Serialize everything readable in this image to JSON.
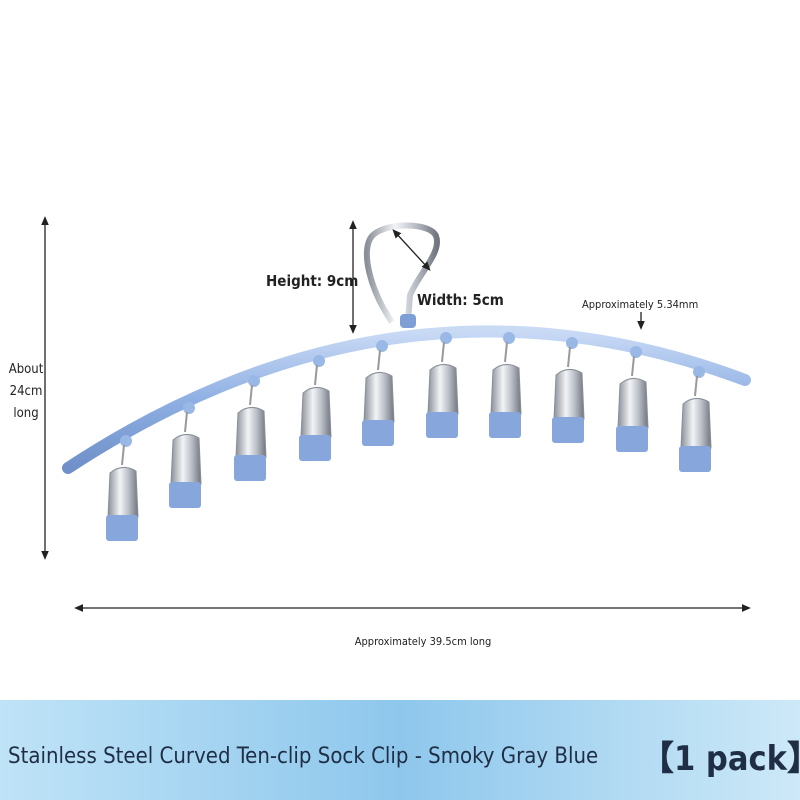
{
  "annotations": {
    "height": "Height: 9cm",
    "width": "Width: 5cm",
    "thickness": "Approximately 5.34mm",
    "side_length": [
      "About",
      "24cm",
      "long"
    ],
    "length": "Approximately 39.5cm long"
  },
  "banner": {
    "title": "Stainless Steel Curved Ten-clip Sock Clip - Smoky Gray Blue",
    "pack": "【1 pack】"
  }
}
